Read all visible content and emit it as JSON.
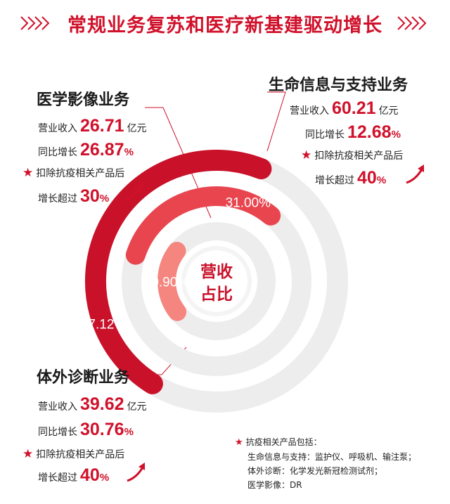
{
  "title": "常规业务复苏和医疗新基建驱动增长",
  "center_label": [
    "营收",
    "占比"
  ],
  "segments": {
    "life": {
      "name": "生命信息与支持业务",
      "revenue_label": "营业收入",
      "revenue": "60.21",
      "revenue_unit": "亿元",
      "yoy_label": "同比增长",
      "yoy": "12.68",
      "excl_label": "扣除抗疫相关产品后",
      "growth_label": "增长超过",
      "growth": "40"
    },
    "imaging": {
      "name": "医学影像业务",
      "revenue_label": "营业收入",
      "revenue": "26.71",
      "revenue_unit": "亿元",
      "yoy_label": "同比增长",
      "yoy": "26.87",
      "excl_label": "扣除抗疫相关产品后",
      "growth_label": "增长超过",
      "growth": "30"
    },
    "ivd": {
      "name": "体外诊断业务",
      "revenue_label": "营业收入",
      "revenue": "39.62",
      "revenue_unit": "亿元",
      "yoy_label": "同比增长",
      "yoy": "30.76",
      "excl_label": "扣除抗疫相关产品后",
      "growth_label": "增长超过",
      "growth": "40"
    }
  },
  "pct_unit": "%",
  "notes": {
    "header": "抗疫相关产品包括：",
    "lines": [
      "生命信息与支持：监护仪、呼吸机、输注泵；",
      "体外诊断：化学发光新冠检测试剂；",
      "医学影像：DR"
    ]
  },
  "colors": {
    "accent": "#d0112b",
    "outer_ring": "#c9112a",
    "middle_ring": "#e8454f",
    "inner_ring": "#f4857f",
    "track": "#ededed"
  },
  "chart_data": {
    "type": "pie",
    "title": "",
    "categories": [
      "生命信息与支持业务",
      "体外诊断业务",
      "医学影像业务"
    ],
    "values": [
      47.12,
      31.0,
      20.9
    ],
    "labels": [
      "47.12%",
      "31.00%",
      "20.90%"
    ],
    "unit": "%"
  }
}
